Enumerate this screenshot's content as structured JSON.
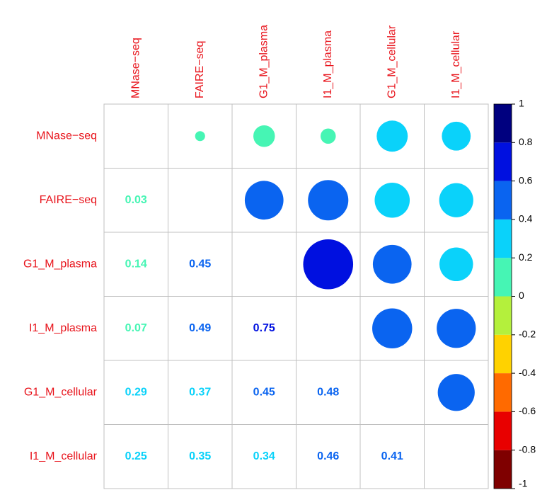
{
  "chart_data": {
    "type": "corrplot",
    "variables": [
      "MNase−seq",
      "FAIRE−seq",
      "G1_M_plasma",
      "I1_M_plasma",
      "G1_M_cellular",
      "I1_M_cellular"
    ],
    "values": [
      [
        null,
        0.03,
        0.14,
        0.07,
        0.29,
        0.25
      ],
      [
        0.03,
        null,
        0.45,
        0.49,
        0.37,
        0.35
      ],
      [
        0.14,
        0.45,
        null,
        0.75,
        0.45,
        0.34
      ],
      [
        0.07,
        0.49,
        0.75,
        null,
        0.48,
        0.46
      ],
      [
        0.29,
        0.37,
        0.45,
        0.48,
        null,
        0.41
      ],
      [
        0.25,
        0.35,
        0.34,
        0.46,
        0.41,
        null
      ]
    ],
    "colorbar_lim": [
      -1,
      1
    ],
    "colorbar_ticks": [
      -1,
      -0.8,
      -0.6,
      -0.4,
      -0.2,
      0,
      0.2,
      0.4,
      0.6,
      0.8,
      1
    ],
    "colors": [
      "#7f0000",
      "#e80000",
      "#ff6a00",
      "#ffd200",
      "#b4f03c",
      "#46f5b4",
      "#0ad2fa",
      "#0a64f0",
      "#0010e0",
      "#00007f"
    ]
  }
}
